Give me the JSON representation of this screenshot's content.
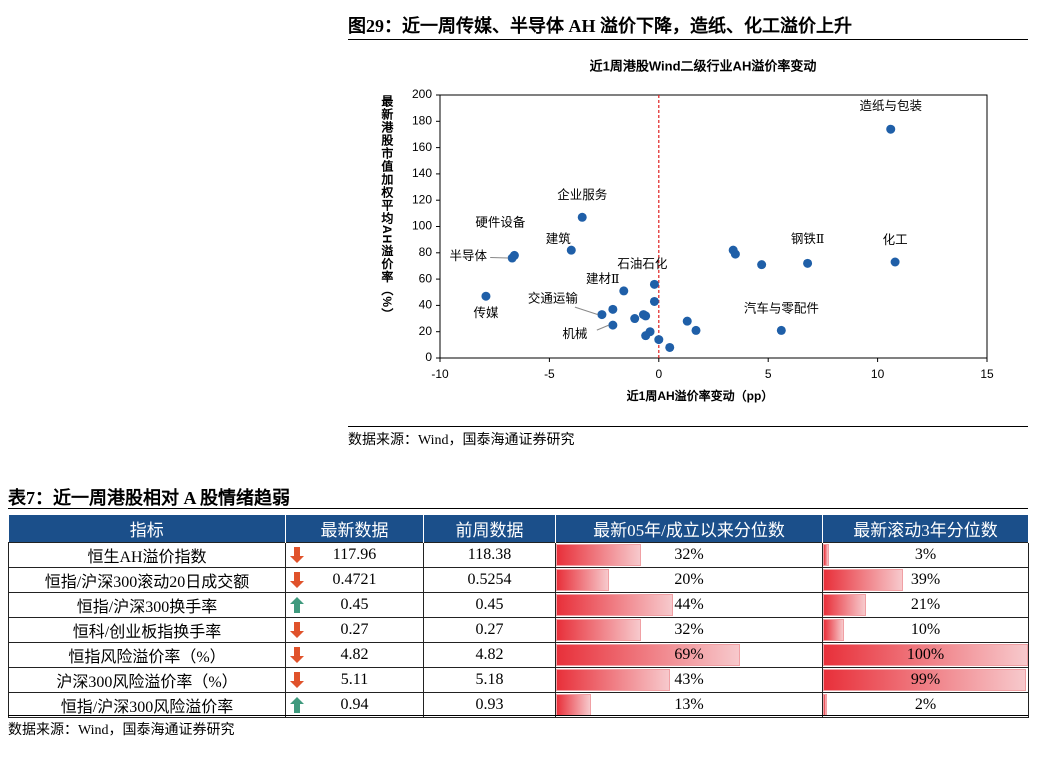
{
  "figure": {
    "caption": "图29：近一周传媒、半导体 AH 溢价下降，造纸、化工溢价上升",
    "source": "数据来源：Wind，国泰海通证券研究"
  },
  "chart_data": {
    "type": "scatter",
    "title": "近1周港股Wind二级行业AH溢价率变动",
    "x_label": "近1周AH溢价率变动（pp）",
    "y_label": "最新港股市值加权平均AH溢价率（%）",
    "x": [
      10.6,
      10.8,
      6.8,
      4.7,
      3.4,
      3.5,
      5.6,
      1.3,
      1.7,
      0.5,
      0.0,
      -0.4,
      -0.6,
      -0.6,
      -0.7,
      -1.1,
      -0.2,
      -0.2,
      -1.6,
      -2.1,
      -2.6,
      -2.1,
      -3.5,
      -4.0,
      -6.6,
      -6.7,
      -7.9
    ],
    "values": [
      174,
      73,
      72,
      71,
      82,
      79,
      21,
      28,
      21,
      8,
      14,
      20,
      17,
      32,
      33,
      30,
      43,
      56,
      51,
      37,
      33,
      25,
      107,
      82,
      78,
      76,
      47
    ],
    "labels": [
      "造纸与包装",
      "化工",
      "钢铁Ⅱ",
      null,
      null,
      null,
      "汽车与零配件",
      null,
      null,
      null,
      null,
      null,
      null,
      null,
      null,
      null,
      null,
      "石油石化",
      "建材Ⅱ",
      null,
      "交通运输",
      "机械",
      "企业服务",
      "建筑",
      "硬件设备",
      "半导体",
      "传媒"
    ],
    "color": "#1f5fa8",
    "vline": 0,
    "vline_color": "#e02020",
    "xlim": [
      -10,
      15
    ],
    "xticks": [
      -10,
      -5,
      0,
      5,
      10,
      15
    ],
    "ylim": [
      0,
      200
    ],
    "yticks": [
      0,
      20,
      40,
      60,
      80,
      100,
      120,
      140,
      160,
      180,
      200
    ]
  },
  "table": {
    "caption": "表7：近一周港股相对 A 股情绪趋弱",
    "source": "数据来源：Wind，国泰海通证券研究",
    "header": [
      "指标",
      "最新数据",
      "前周数据",
      "最新05年/成立以来分位数",
      "最新滚动3年分位数"
    ],
    "rows": [
      {
        "name": "恒生AH溢价指数",
        "trend": "down",
        "latest": "117.96",
        "prev": "118.38",
        "pct05": {
          "value": 32,
          "label": "32%"
        },
        "pct3y": {
          "value": 3,
          "label": "3%"
        }
      },
      {
        "name": "恒指/沪深300滚动20日成交额",
        "trend": "down",
        "latest": "0.4721",
        "prev": "0.5254",
        "pct05": {
          "value": 20,
          "label": "20%"
        },
        "pct3y": {
          "value": 39,
          "label": "39%"
        }
      },
      {
        "name": "恒指/沪深300换手率",
        "trend": "up",
        "latest": "0.45",
        "prev": "0.45",
        "pct05": {
          "value": 44,
          "label": "44%"
        },
        "pct3y": {
          "value": 21,
          "label": "21%"
        }
      },
      {
        "name": "恒科/创业板指换手率",
        "trend": "down",
        "latest": "0.27",
        "prev": "0.27",
        "pct05": {
          "value": 32,
          "label": "32%"
        },
        "pct3y": {
          "value": 10,
          "label": "10%"
        }
      },
      {
        "name": "恒指风险溢价率（%）",
        "trend": "down",
        "latest": "4.82",
        "prev": "4.82",
        "pct05": {
          "value": 69,
          "label": "69%"
        },
        "pct3y": {
          "value": 100,
          "label": "100%"
        }
      },
      {
        "name": "沪深300风险溢价率（%）",
        "trend": "down",
        "latest": "5.11",
        "prev": "5.18",
        "pct05": {
          "value": 43,
          "label": "43%"
        },
        "pct3y": {
          "value": 99,
          "label": "99%"
        }
      },
      {
        "name": "恒指/沪深300风险溢价率",
        "trend": "up",
        "latest": "0.94",
        "prev": "0.93",
        "pct05": {
          "value": 13,
          "label": "13%"
        },
        "pct3y": {
          "value": 2,
          "label": "2%"
        }
      }
    ]
  }
}
